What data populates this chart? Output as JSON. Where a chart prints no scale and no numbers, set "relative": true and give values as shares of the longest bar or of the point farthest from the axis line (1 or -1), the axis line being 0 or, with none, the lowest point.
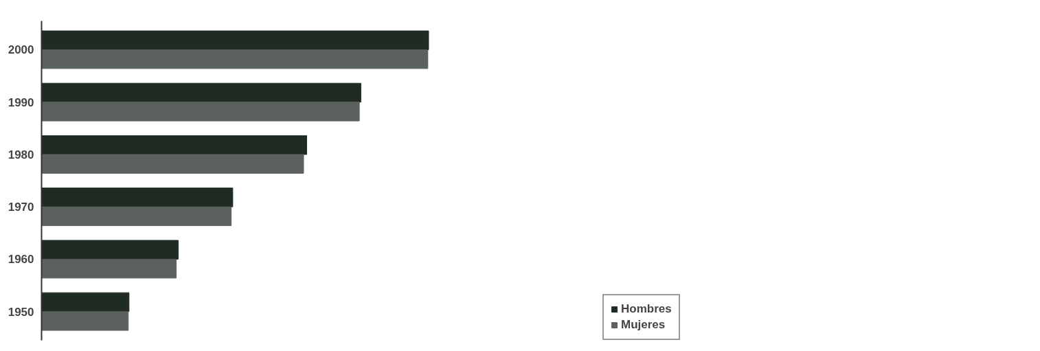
{
  "chart_data": {
    "type": "bar",
    "orientation": "horizontal",
    "relative": true,
    "legend": "right",
    "categories": [
      "2000",
      "1990",
      "1980",
      "1970",
      "1960",
      "1950"
    ],
    "series": [
      {
        "name": "Hombres",
        "color": "#1f2b23",
        "values": [
          1.0,
          0.825,
          0.685,
          0.494,
          0.353,
          0.226
        ]
      },
      {
        "name": "Mujeres",
        "color": "#5b615c",
        "values": [
          0.998,
          0.821,
          0.677,
          0.49,
          0.348,
          0.224
        ]
      }
    ]
  }
}
